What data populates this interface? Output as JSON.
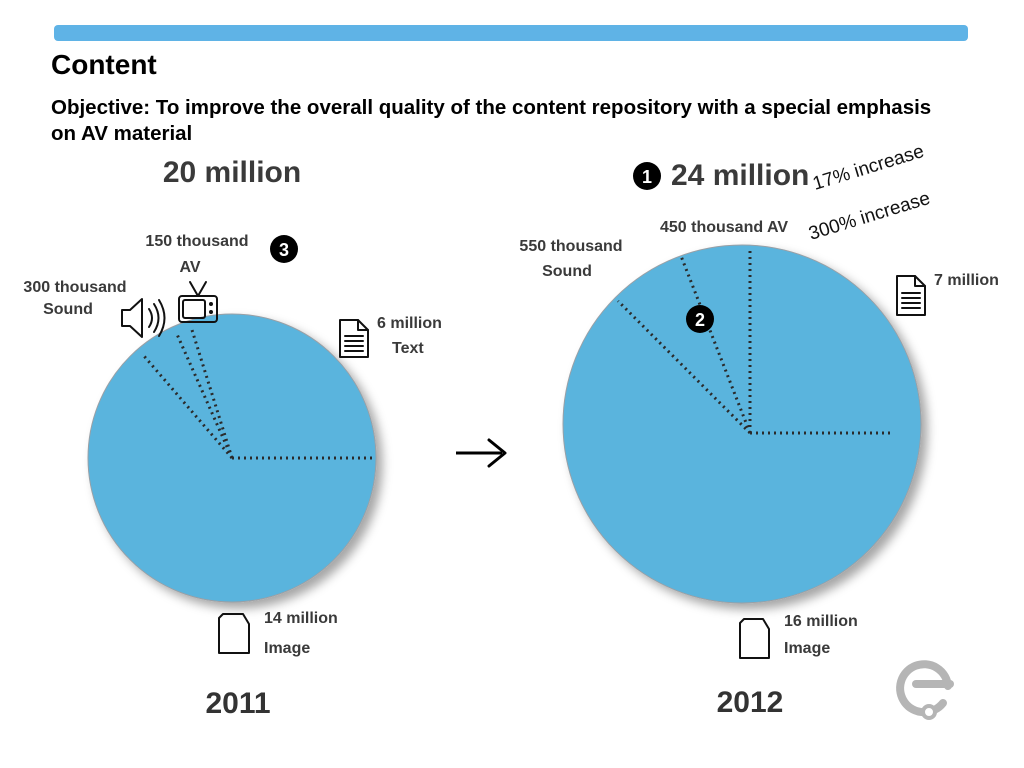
{
  "title": "Content",
  "objective": "Objective: To improve the overall quality of the content repository with a special emphasis on AV material",
  "arrow": "→",
  "colors": {
    "bar": "#5fb3e6",
    "pie": "#5ab4dd"
  },
  "annotations": {
    "increase_total": "17% increase",
    "increase_av": "300% increase",
    "badges": [
      "1",
      "2",
      "3"
    ]
  },
  "icons": {
    "sound": "speaker-icon",
    "av": "tv-icon",
    "text": "text-document-icon",
    "image": "image-document-icon",
    "logo": "europeana-logo-icon"
  },
  "chart_data": [
    {
      "type": "pie",
      "year": "2011",
      "total": "20 million",
      "slices": [
        {
          "name": "Text",
          "value": 6,
          "label": "6 million"
        },
        {
          "name": "Image",
          "value": 14,
          "label": "14 million"
        },
        {
          "name": "Sound",
          "value": 0.3,
          "label": "300 thousand"
        },
        {
          "name": "AV",
          "value": 0.15,
          "label": "150 thousand"
        }
      ]
    },
    {
      "type": "pie",
      "year": "2012",
      "total": "24 million",
      "slices": [
        {
          "name": "Text",
          "value": 7,
          "label": "7 million"
        },
        {
          "name": "Image",
          "value": 16,
          "label": "16 million"
        },
        {
          "name": "Sound",
          "value": 0.55,
          "label": "550 thousand"
        },
        {
          "name": "AV",
          "value": 0.45,
          "label": "450 thousand AV"
        }
      ]
    }
  ]
}
